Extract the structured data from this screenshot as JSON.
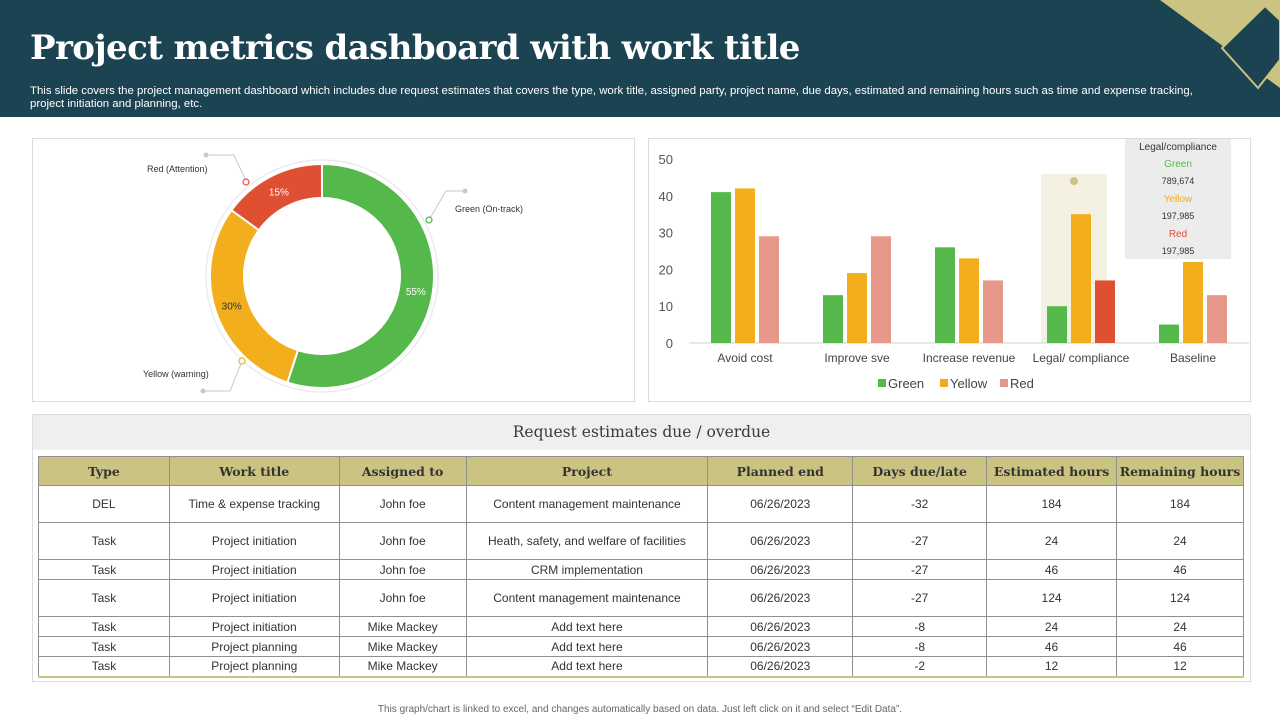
{
  "header": {
    "title": "Project metrics dashboard with work title",
    "subtitle": "This slide covers the project management dashboard which includes due request estimates that covers the type, work title, assigned party, project name, due days, estimated and remaining hours such as time and expense tracking, project initiation and planning, etc."
  },
  "colors": {
    "header_bg": "#1c4352",
    "accent_gold": "#cbc382",
    "green": "#54b84b",
    "yellow": "#f2ae1c",
    "red": "#df5033",
    "salmon": "#e8978b"
  },
  "chart_data": [
    {
      "type": "pie",
      "subtype": "donut",
      "categories": [
        "Green (On-track)",
        "Yellow (warning)",
        "Red (Attention)"
      ],
      "values": [
        55,
        30,
        15
      ],
      "value_labels": [
        "55%",
        "30%",
        "15%"
      ],
      "colors": [
        "#54b84b",
        "#f2ae1c",
        "#df5033"
      ]
    },
    {
      "type": "bar",
      "categories": [
        "Avoid cost",
        "Improve sve",
        "Increase revenue",
        "Legal/ compliance",
        "Baseline"
      ],
      "series": [
        {
          "name": "Green",
          "color": "#54b84b",
          "values": [
            41,
            13,
            26,
            10,
            5
          ]
        },
        {
          "name": "Yellow",
          "color": "#f2ae1c",
          "values": [
            42,
            19,
            23,
            35,
            22
          ]
        },
        {
          "name": "Red",
          "color": "#e8978b",
          "highlight_color": "#df5033",
          "values": [
            29,
            29,
            17,
            17,
            13
          ]
        }
      ],
      "ylim": [
        0,
        50
      ],
      "yticks": [
        0,
        10,
        20,
        30,
        40,
        50
      ],
      "highlight_category": 3,
      "legend_position": "bottom",
      "tooltip": {
        "title": "Legal/compliance",
        "rows": [
          {
            "label": "Green",
            "value": "789,674",
            "color": "#54b84b"
          },
          {
            "label": "Yellow",
            "value": "197,985",
            "color": "#f2ae1c"
          },
          {
            "label": "Red",
            "value": "197,985",
            "color": "#df5033"
          }
        ]
      }
    }
  ],
  "table": {
    "title": "Request estimates due / overdue",
    "columns": [
      "Type",
      "Work title",
      "Assigned to",
      "Project",
      "Planned end",
      "Days due/late",
      "Estimated hours",
      "Remaining hours"
    ],
    "rows": [
      [
        "DEL",
        "Time & expense tracking",
        "John foe",
        "Content management maintenance",
        "06/26/2023",
        "-32",
        "184",
        "184"
      ],
      [
        "Task",
        "Project initiation",
        "John foe",
        "Heath, safety, and welfare of facilities",
        "06/26/2023",
        "-27",
        "24",
        "24"
      ],
      [
        "Task",
        "Project initiation",
        "John foe",
        "CRM implementation",
        "06/26/2023",
        "-27",
        "46",
        "46"
      ],
      [
        "Task",
        "Project initiation",
        "John foe",
        "Content management maintenance",
        "06/26/2023",
        "-27",
        "124",
        "124"
      ],
      [
        "Task",
        "Project initiation",
        "Mike Mackey",
        "Add text here",
        "06/26/2023",
        "-8",
        "24",
        "24"
      ],
      [
        "Task",
        "Project planning",
        "Mike Mackey",
        "Add text here",
        "06/26/2023",
        "-8",
        "46",
        "46"
      ],
      [
        "Task",
        "Project planning",
        "Mike Mackey",
        "Add text here",
        "06/26/2023",
        "-2",
        "12",
        "12"
      ]
    ]
  },
  "footer": "This graph/chart is linked to excel, and changes automatically based on data. Just left click on it and select “Edit Data”."
}
